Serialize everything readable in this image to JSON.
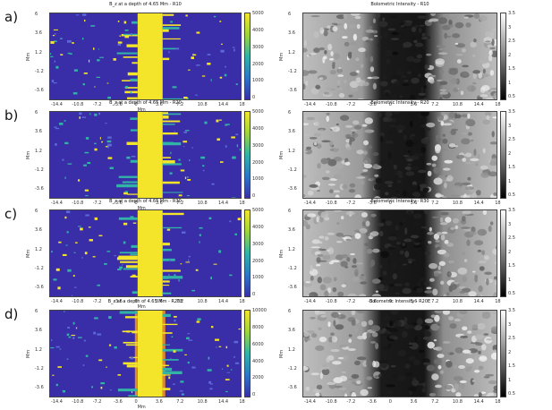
{
  "rows": [
    {
      "label": "a)",
      "bz_title": "B_z at a depth of 4.65 Mm - R10",
      "int_title": "Bolometric Intensity - R10",
      "bz_ticks": [
        "5000",
        "4000",
        "3000",
        "2000",
        "1000",
        "0"
      ],
      "bz_ymax": 5000
    },
    {
      "label": "b)",
      "bz_title": "B_z at a depth of 4.65 Mm - R20",
      "int_title": "Bolometric Intensity - R20",
      "bz_ticks": [
        "5000",
        "4000",
        "3000",
        "2000",
        "1000",
        "0"
      ],
      "bz_ymax": 5000
    },
    {
      "label": "c)",
      "bz_title": "B_z at a depth of 4.65 Mm - R30",
      "int_title": "Bolometric Intensity - R30",
      "bz_ticks": [
        "5000",
        "4000",
        "3000",
        "2000",
        "1000",
        "0"
      ],
      "bz_ymax": 5000
    },
    {
      "label": "d)",
      "bz_title": "B_z at a depth of 4.65 Mm - R20E",
      "int_title": "Bolometric Intensity - R20E",
      "bz_ticks": [
        "10000",
        "8000",
        "6000",
        "4000",
        "2000",
        "0"
      ],
      "bz_ymax": 10000
    }
  ],
  "int_ticks": [
    "3.5",
    "3",
    "2.5",
    "2",
    "1.5",
    "1",
    "0.5"
  ],
  "x_ticks": [
    "-14.4",
    "-10.8",
    "-7.2",
    "-3.6",
    "0",
    "3.6",
    "7.2",
    "10.8",
    "14.4",
    "18"
  ],
  "y_ticks": [
    "6",
    "3.6",
    "1.2",
    "-1.2",
    "-3.6"
  ],
  "axis_unit": "Mm",
  "colors": {
    "bz_bg": "#3a2ea8",
    "bz_strong": "#f5e52a",
    "bz_mid": "#31b3a6",
    "int_dark": "#0c0c0c",
    "int_light": "#e6e6e6"
  }
}
